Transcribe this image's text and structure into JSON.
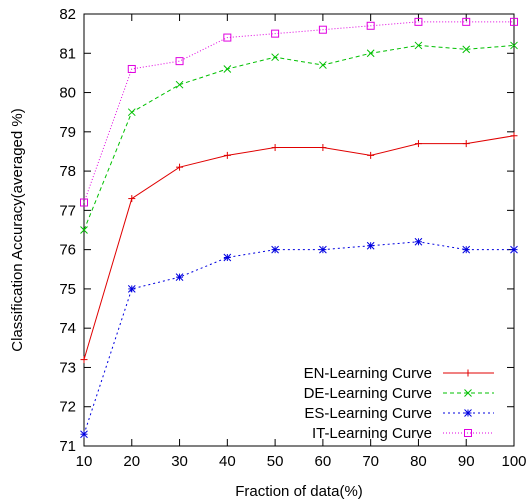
{
  "chart_data": {
    "type": "line",
    "title": "",
    "xlabel": "Fraction of data(%)",
    "ylabel": "Classification Accuracy(averaged %)",
    "xlim": [
      10,
      100
    ],
    "ylim": [
      71,
      82
    ],
    "x_ticks": [
      10,
      20,
      30,
      40,
      50,
      60,
      70,
      80,
      90,
      100
    ],
    "y_ticks": [
      71,
      72,
      73,
      74,
      75,
      76,
      77,
      78,
      79,
      80,
      81,
      82
    ],
    "grid": false,
    "legend_position": "bottom-right",
    "x": [
      10,
      20,
      30,
      40,
      50,
      60,
      70,
      80,
      90,
      100
    ],
    "series": [
      {
        "name": "EN-Learning Curve",
        "color": "#e00000",
        "dash": "solid",
        "marker": "plus",
        "values": [
          73.2,
          77.3,
          78.1,
          78.4,
          78.6,
          78.6,
          78.4,
          78.7,
          78.7,
          78.9
        ]
      },
      {
        "name": "DE-Learning Curve",
        "color": "#00c000",
        "dash": "dashed",
        "marker": "x",
        "values": [
          76.5,
          79.5,
          80.2,
          80.6,
          80.9,
          80.7,
          81.0,
          81.2,
          81.1,
          81.2
        ]
      },
      {
        "name": "ES-Learning Curve",
        "color": "#0000e0",
        "dash": "dotted",
        "marker": "star",
        "values": [
          71.3,
          75.0,
          75.3,
          75.8,
          76.0,
          76.0,
          76.1,
          76.2,
          76.0,
          76.0
        ]
      },
      {
        "name": "IT-Learning Curve",
        "color": "#e000e0",
        "dash": "fine-dotted",
        "marker": "square",
        "values": [
          77.2,
          80.6,
          80.8,
          81.4,
          81.5,
          81.6,
          81.7,
          81.8,
          81.8,
          81.8
        ]
      }
    ]
  }
}
